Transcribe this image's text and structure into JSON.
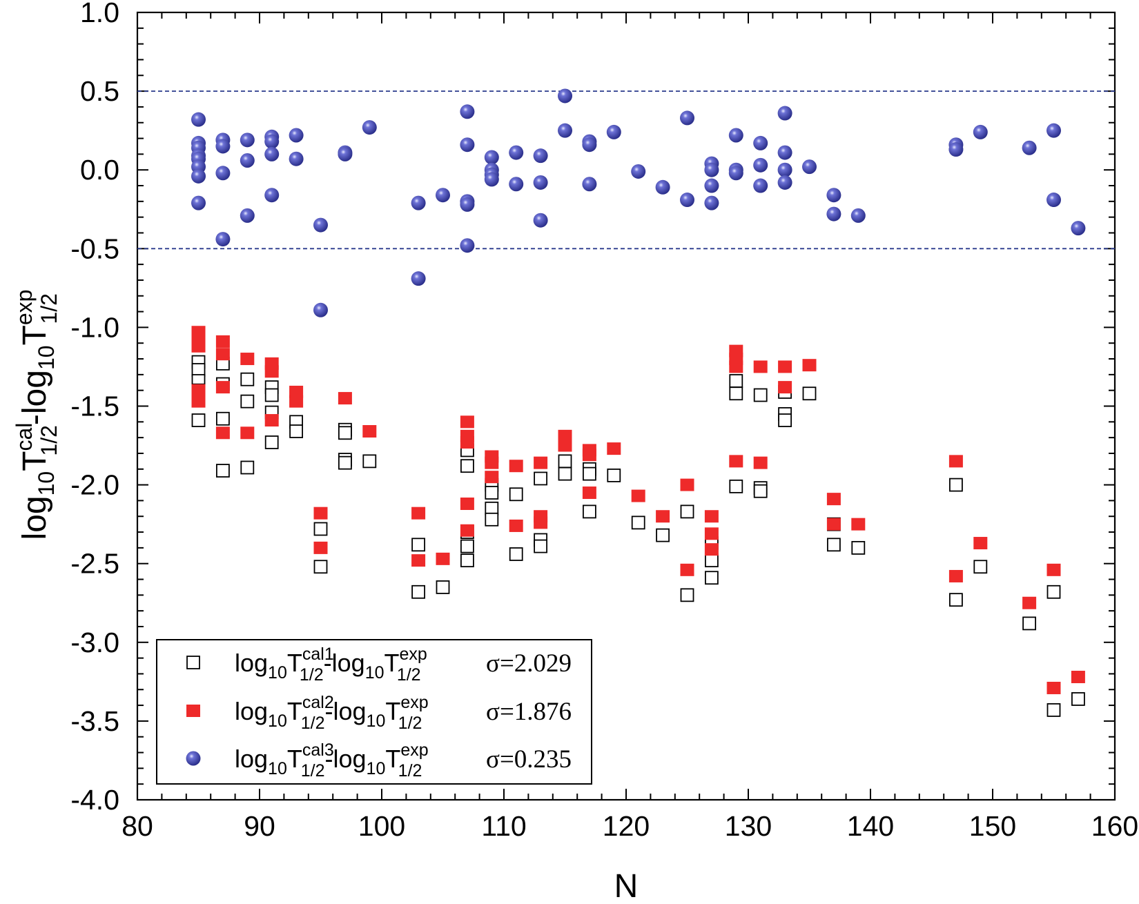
{
  "chart_data": {
    "type": "scatter",
    "xlabel": "N",
    "ylabel": {
      "base": "log",
      "sub10": "10",
      "T": "T",
      "sup": "cal",
      "sub": "1/2",
      "dash": "-",
      "base2": "log",
      "sub10b": "10",
      "T2": "T",
      "sup2": "exp",
      "sub2": "1/2"
    },
    "xlim": [
      80,
      160
    ],
    "ylim": [
      -4.0,
      1.0
    ],
    "xticks": [
      "80",
      "90",
      "100",
      "110",
      "120",
      "130",
      "140",
      "150",
      "160"
    ],
    "yticks": [
      "1.0",
      "0.5",
      "0.0",
      "-0.5",
      "-1.0",
      "-1.5",
      "-2.0",
      "-2.5",
      "-3.0",
      "-3.5",
      "-4.0"
    ],
    "reference_lines": [
      0.5,
      -0.5
    ],
    "legend_position": "bottom-left",
    "colors": {
      "cal1": "#000000",
      "cal2": "#ee2a2a",
      "cal3": "#3a3fa4"
    },
    "series": [
      {
        "id": "cal1",
        "marker": "open-square",
        "legend": {
          "sup": "cal1",
          "sigma": "σ=2.029"
        },
        "points": [
          [
            85,
            -1.22
          ],
          [
            85,
            -1.27
          ],
          [
            85,
            -1.34
          ],
          [
            85,
            -1.4
          ],
          [
            85,
            -1.59
          ],
          [
            87,
            -1.23
          ],
          [
            87,
            -1.36
          ],
          [
            87,
            -1.58
          ],
          [
            87,
            -1.91
          ],
          [
            89,
            -1.33
          ],
          [
            89,
            -1.47
          ],
          [
            89,
            -1.89
          ],
          [
            91,
            -1.38
          ],
          [
            91,
            -1.43
          ],
          [
            91,
            -1.54
          ],
          [
            91,
            -1.73
          ],
          [
            93,
            -1.6
          ],
          [
            93,
            -1.66
          ],
          [
            95,
            -2.28
          ],
          [
            95,
            -2.52
          ],
          [
            97,
            -1.65
          ],
          [
            97,
            -1.67
          ],
          [
            97,
            -1.84
          ],
          [
            97,
            -1.86
          ],
          [
            99,
            -1.85
          ],
          [
            103,
            -2.38
          ],
          [
            103,
            -2.68
          ],
          [
            105,
            -2.65
          ],
          [
            107,
            -1.78
          ],
          [
            107,
            -1.88
          ],
          [
            107,
            -2.3
          ],
          [
            107,
            -2.39
          ],
          [
            107,
            -2.48
          ],
          [
            109,
            -2.0
          ],
          [
            109,
            -2.05
          ],
          [
            109,
            -2.15
          ],
          [
            109,
            -2.22
          ],
          [
            111,
            -2.06
          ],
          [
            111,
            -2.44
          ],
          [
            113,
            -1.96
          ],
          [
            113,
            -2.35
          ],
          [
            113,
            -2.39
          ],
          [
            115,
            -1.85
          ],
          [
            115,
            -1.93
          ],
          [
            117,
            -1.9
          ],
          [
            117,
            -1.93
          ],
          [
            117,
            -2.17
          ],
          [
            119,
            -1.94
          ],
          [
            121,
            -2.24
          ],
          [
            123,
            -2.32
          ],
          [
            125,
            -2.17
          ],
          [
            125,
            -2.7
          ],
          [
            127,
            -2.37
          ],
          [
            127,
            -2.48
          ],
          [
            127,
            -2.59
          ],
          [
            129,
            -1.34
          ],
          [
            129,
            -1.42
          ],
          [
            129,
            -2.01
          ],
          [
            131,
            -1.43
          ],
          [
            131,
            -2.02
          ],
          [
            131,
            -2.04
          ],
          [
            133,
            -1.41
          ],
          [
            133,
            -1.55
          ],
          [
            133,
            -1.59
          ],
          [
            135,
            -1.42
          ],
          [
            137,
            -2.25
          ],
          [
            137,
            -2.38
          ],
          [
            139,
            -2.4
          ],
          [
            147,
            -2.0
          ],
          [
            147,
            -2.73
          ],
          [
            149,
            -2.52
          ],
          [
            153,
            -2.88
          ],
          [
            155,
            -2.68
          ],
          [
            155,
            -3.43
          ],
          [
            157,
            -3.36
          ]
        ]
      },
      {
        "id": "cal2",
        "marker": "filled-square",
        "legend": {
          "sup": "cal2",
          "sigma": "σ=1.876"
        },
        "points": [
          [
            85,
            -1.03
          ],
          [
            85,
            -1.08
          ],
          [
            85,
            -1.12
          ],
          [
            85,
            -1.4
          ],
          [
            85,
            -1.47
          ],
          [
            87,
            -1.09
          ],
          [
            87,
            -1.17
          ],
          [
            87,
            -1.38
          ],
          [
            87,
            -1.67
          ],
          [
            89,
            -1.2
          ],
          [
            89,
            -1.67
          ],
          [
            91,
            -1.23
          ],
          [
            91,
            -1.28
          ],
          [
            91,
            -1.59
          ],
          [
            93,
            -1.41
          ],
          [
            93,
            -1.47
          ],
          [
            95,
            -2.18
          ],
          [
            95,
            -2.4
          ],
          [
            97,
            -1.45
          ],
          [
            99,
            -1.66
          ],
          [
            103,
            -2.18
          ],
          [
            103,
            -2.48
          ],
          [
            105,
            -2.47
          ],
          [
            107,
            -1.6
          ],
          [
            107,
            -1.69
          ],
          [
            107,
            -1.73
          ],
          [
            107,
            -2.12
          ],
          [
            107,
            -2.29
          ],
          [
            109,
            -1.82
          ],
          [
            109,
            -1.86
          ],
          [
            109,
            -1.95
          ],
          [
            111,
            -1.88
          ],
          [
            111,
            -2.26
          ],
          [
            113,
            -1.86
          ],
          [
            113,
            -2.2
          ],
          [
            113,
            -2.24
          ],
          [
            115,
            -1.69
          ],
          [
            115,
            -1.75
          ],
          [
            117,
            -1.78
          ],
          [
            117,
            -1.81
          ],
          [
            117,
            -2.05
          ],
          [
            119,
            -1.77
          ],
          [
            121,
            -2.07
          ],
          [
            123,
            -2.2
          ],
          [
            125,
            -2.0
          ],
          [
            125,
            -2.54
          ],
          [
            127,
            -2.2
          ],
          [
            127,
            -2.31
          ],
          [
            127,
            -2.41
          ],
          [
            129,
            -1.15
          ],
          [
            129,
            -1.2
          ],
          [
            129,
            -1.25
          ],
          [
            129,
            -1.85
          ],
          [
            131,
            -1.25
          ],
          [
            131,
            -1.86
          ],
          [
            133,
            -1.25
          ],
          [
            133,
            -1.38
          ],
          [
            135,
            -1.24
          ],
          [
            137,
            -2.09
          ],
          [
            137,
            -2.25
          ],
          [
            139,
            -2.25
          ],
          [
            147,
            -1.85
          ],
          [
            147,
            -2.58
          ],
          [
            149,
            -2.37
          ],
          [
            153,
            -2.75
          ],
          [
            155,
            -2.54
          ],
          [
            155,
            -3.29
          ],
          [
            157,
            -3.22
          ]
        ]
      },
      {
        "id": "cal3",
        "marker": "filled-circle",
        "legend": {
          "sup": "cal3",
          "sigma": "σ=0.235"
        },
        "points": [
          [
            85,
            0.32
          ],
          [
            85,
            0.17
          ],
          [
            85,
            0.14
          ],
          [
            85,
            0.09
          ],
          [
            85,
            0.07
          ],
          [
            85,
            0.02
          ],
          [
            85,
            -0.04
          ],
          [
            85,
            -0.21
          ],
          [
            87,
            0.19
          ],
          [
            87,
            0.15
          ],
          [
            87,
            -0.02
          ],
          [
            87,
            -0.44
          ],
          [
            89,
            0.19
          ],
          [
            89,
            0.06
          ],
          [
            89,
            -0.29
          ],
          [
            91,
            0.21
          ],
          [
            91,
            0.18
          ],
          [
            91,
            0.1
          ],
          [
            91,
            -0.16
          ],
          [
            93,
            0.22
          ],
          [
            93,
            0.07
          ],
          [
            95,
            -0.35
          ],
          [
            95,
            -0.89
          ],
          [
            97,
            0.11
          ],
          [
            97,
            0.1
          ],
          [
            99,
            0.27
          ],
          [
            103,
            -0.21
          ],
          [
            103,
            -0.69
          ],
          [
            105,
            -0.16
          ],
          [
            107,
            0.37
          ],
          [
            107,
            0.16
          ],
          [
            107,
            -0.2
          ],
          [
            107,
            -0.22
          ],
          [
            107,
            -0.48
          ],
          [
            109,
            0.08
          ],
          [
            109,
            0.0
          ],
          [
            109,
            -0.03
          ],
          [
            109,
            -0.06
          ],
          [
            111,
            0.11
          ],
          [
            111,
            -0.09
          ],
          [
            113,
            0.09
          ],
          [
            113,
            -0.08
          ],
          [
            113,
            -0.32
          ],
          [
            115,
            0.47
          ],
          [
            115,
            0.25
          ],
          [
            117,
            0.18
          ],
          [
            117,
            0.16
          ],
          [
            117,
            -0.09
          ],
          [
            119,
            0.24
          ],
          [
            121,
            -0.01
          ],
          [
            123,
            -0.11
          ],
          [
            125,
            0.33
          ],
          [
            125,
            -0.19
          ],
          [
            127,
            0.04
          ],
          [
            127,
            0.0
          ],
          [
            127,
            -0.1
          ],
          [
            127,
            -0.21
          ],
          [
            129,
            0.22
          ],
          [
            129,
            0.0
          ],
          [
            129,
            -0.02
          ],
          [
            131,
            0.17
          ],
          [
            131,
            0.03
          ],
          [
            131,
            -0.1
          ],
          [
            133,
            0.36
          ],
          [
            133,
            0.11
          ],
          [
            133,
            0.0
          ],
          [
            133,
            -0.08
          ],
          [
            135,
            0.02
          ],
          [
            137,
            -0.16
          ],
          [
            137,
            -0.28
          ],
          [
            139,
            -0.29
          ],
          [
            147,
            0.16
          ],
          [
            147,
            0.13
          ],
          [
            149,
            0.24
          ],
          [
            153,
            0.14
          ],
          [
            155,
            0.25
          ],
          [
            155,
            -0.19
          ],
          [
            157,
            -0.37
          ]
        ]
      }
    ]
  }
}
